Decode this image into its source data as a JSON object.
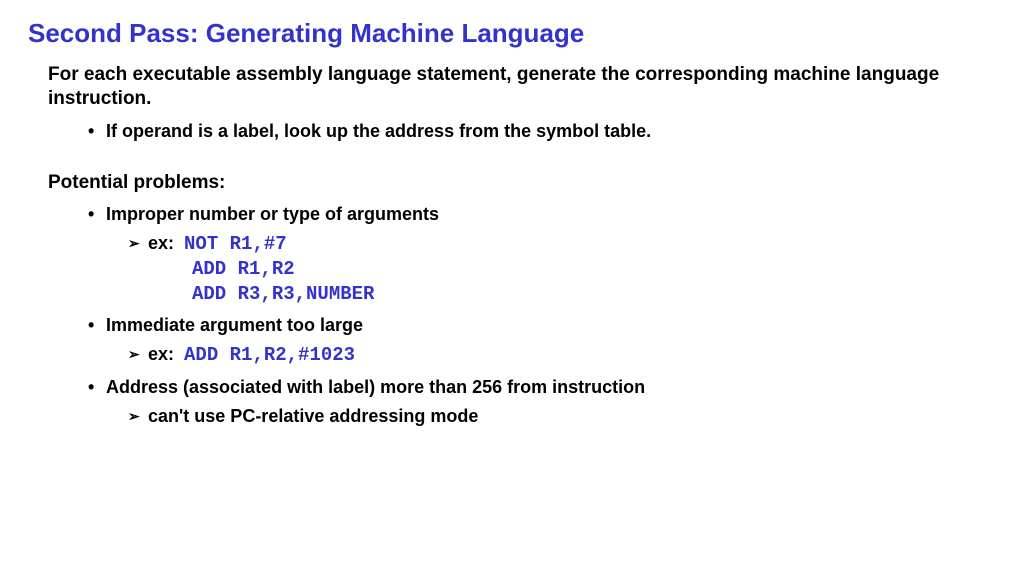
{
  "title": "Second Pass: Generating Machine Language",
  "intro": "For each executable assembly language statement, generate the corresponding machine language instruction.",
  "introBullet": "If operand is a label, look up the address from the symbol table.",
  "problemsHead": "Potential problems:",
  "p1": "Improper number or type of arguments",
  "exLabel": "ex:",
  "code1a": "NOT R1,#7",
  "code1b": "ADD R1,R2",
  "code1c": "ADD R3,R3,NUMBER",
  "p2": "Immediate argument too large",
  "code2": "ADD R1,R2,#1023",
  "p3": "Address (associated with label) more than 256 from instruction",
  "p3sub": "can't use PC-relative addressing mode",
  "colors": {
    "title": "#3333cc",
    "code": "#3333cc",
    "text": "#000000",
    "bg": "#ffffff"
  }
}
